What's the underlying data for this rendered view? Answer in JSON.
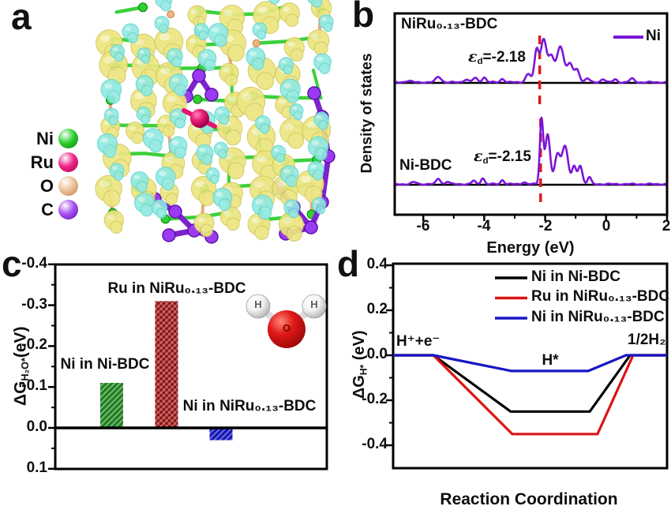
{
  "figure": {
    "panel_letters": {
      "a": "a",
      "b": "b",
      "c": "c",
      "d": "d"
    }
  },
  "panel_a": {
    "legend": [
      {
        "name": "Ni",
        "color": "#30d130",
        "dark": "#0b7d0b"
      },
      {
        "name": "Ru",
        "color": "#ef2585",
        "dark": "#a3064e"
      },
      {
        "name": "O",
        "color": "#eec29b",
        "dark": "#bc7a42"
      },
      {
        "name": "C",
        "color": "#a851f2",
        "dark": "#5d10ae"
      }
    ],
    "isosurface": {
      "charge_accumulation": "#ece67f",
      "charge_depletion": "#8fe9e1"
    }
  },
  "chart_data": [
    {
      "id": "panel_b_density_of_states",
      "type": "line",
      "xlabel": "Energy (eV)",
      "ylabel": "Density of states",
      "xlim": [
        -7,
        2
      ],
      "x_major_ticks": [
        -6,
        -4,
        -2,
        0,
        2
      ],
      "x_tick_labels": [
        "-6",
        "-4",
        "-2",
        "0",
        "2"
      ],
      "x_minor_ticks": [
        -5,
        -3,
        -1,
        1
      ],
      "grid": false,
      "curve_color": "#7a16d8",
      "d_band_marker_color": "#e01b1b",
      "legend": {
        "label": "Ni",
        "position": "top-right"
      },
      "subpanels": [
        {
          "title": "NiRu₀.₁₃-BDC",
          "series": "Ni",
          "d_band_center": -2.18,
          "eps": {
            "symbol": "ε",
            "sub": "d",
            "value": "=-2.18"
          },
          "peaks_center_height_width": [
            [
              -6.5,
              0.02,
              0.1
            ],
            [
              -5.5,
              0.08,
              0.09
            ],
            [
              -4.6,
              0.04,
              0.08
            ],
            [
              -4.3,
              0.06,
              0.08
            ],
            [
              -4.0,
              0.07,
              0.07
            ],
            [
              -3.4,
              0.05,
              0.07
            ],
            [
              -2.55,
              0.12,
              0.09
            ],
            [
              -2.28,
              0.45,
              0.07
            ],
            [
              -2.05,
              0.62,
              0.1
            ],
            [
              -1.8,
              0.34,
              0.09
            ],
            [
              -1.5,
              0.52,
              0.12
            ],
            [
              -1.18,
              0.26,
              0.09
            ],
            [
              -0.95,
              0.18,
              0.08
            ],
            [
              -0.62,
              0.06,
              0.07
            ],
            [
              -0.1,
              0.05,
              0.07
            ],
            [
              0.3,
              0.04,
              0.07
            ],
            [
              0.85,
              0.05,
              0.08
            ]
          ]
        },
        {
          "title": "Ni-BDC",
          "series": "Ni",
          "d_band_center": -2.15,
          "eps": {
            "symbol": "ε",
            "sub": "d",
            "value": "=-2.15"
          },
          "peaks_center_height_width": [
            [
              -6.3,
              0.03,
              0.08
            ],
            [
              -5.5,
              0.08,
              0.07
            ],
            [
              -5.2,
              0.04,
              0.06
            ],
            [
              -4.35,
              0.05,
              0.06
            ],
            [
              -4.05,
              0.09,
              0.06
            ],
            [
              -3.4,
              0.06,
              0.06
            ],
            [
              -2.7,
              0.03,
              0.06
            ],
            [
              -2.12,
              0.93,
              0.055
            ],
            [
              -1.92,
              0.72,
              0.08
            ],
            [
              -1.6,
              0.42,
              0.09
            ],
            [
              -1.35,
              0.55,
              0.1
            ],
            [
              -1.05,
              0.25,
              0.07
            ],
            [
              -0.85,
              0.27,
              0.07
            ],
            [
              -0.55,
              0.1,
              0.06
            ]
          ]
        }
      ]
    },
    {
      "id": "panel_c_h2o_adsorption_free_energy",
      "type": "bar",
      "ylabel": {
        "main": "ΔG",
        "sub": "H₂O*",
        "unit": "(eV)"
      },
      "y_axis_inverted": true,
      "ylim": [
        -0.4,
        0.1
      ],
      "y_ticks": [
        -0.4,
        -0.3,
        -0.2,
        -0.1,
        0.0,
        0.1
      ],
      "y_tick_labels": [
        "-0.4",
        "-0.3",
        "-0.2",
        "-0.1",
        "0.0",
        "0.1"
      ],
      "categories": [
        "Ni in Ni-BDC",
        "Ru in NiRu₀.₁₃-BDC",
        "Ni in NiRu₀.₁₃-BDC"
      ],
      "values": [
        -0.11,
        -0.31,
        0.03
      ],
      "bar_colors": [
        "#1e7e1e",
        "#8e1111",
        "#1616b6"
      ],
      "inset_molecule": {
        "name": "H₂O",
        "atom_labels": [
          "H",
          "O",
          "H"
        ],
        "o_color": "#e01818",
        "h_color": "#f2f2f2"
      }
    },
    {
      "id": "panel_d_hydrogen_adsorption_free_energy",
      "type": "line",
      "xlabel": "Reaction Coordination",
      "ylabel": {
        "main": "ΔG",
        "sub": "H*",
        "unit": " (eV)"
      },
      "ylim": [
        -0.55,
        0.45
      ],
      "y_ticks": [
        0.4,
        0.2,
        0.0,
        -0.2,
        -0.4
      ],
      "y_tick_labels": [
        "0.4",
        "0.2",
        "0.0",
        "-0.2",
        "-0.4"
      ],
      "y_minor_ticks": [
        0.3,
        0.1,
        -0.1,
        -0.3
      ],
      "stages": [
        "H⁺+e⁻",
        "H*",
        "1/2H₂"
      ],
      "legend_position": "top-right",
      "series": [
        {
          "name": "Ni in Ni-BDC",
          "color": "#000000",
          "h_star_dG": -0.25,
          "x": [
            0,
            0.147,
            0.429,
            0.718,
            0.865,
            1
          ],
          "y": [
            0,
            0,
            -0.25,
            -0.25,
            0,
            0
          ]
        },
        {
          "name": "Ru in NiRu₀.₁₃-BDC",
          "color": "#dd1414",
          "h_star_dG": -0.35,
          "x": [
            0,
            0.147,
            0.435,
            0.746,
            0.876,
            1
          ],
          "y": [
            0,
            0,
            -0.35,
            -0.35,
            0,
            0
          ]
        },
        {
          "name": "Ni in NiRu₀.₁₃-BDC",
          "color": "#1717c4",
          "h_star_dG": -0.07,
          "x": [
            0,
            0.147,
            0.432,
            0.712,
            0.85,
            1
          ],
          "y": [
            0,
            0,
            -0.07,
            -0.07,
            0,
            0
          ]
        }
      ]
    }
  ]
}
